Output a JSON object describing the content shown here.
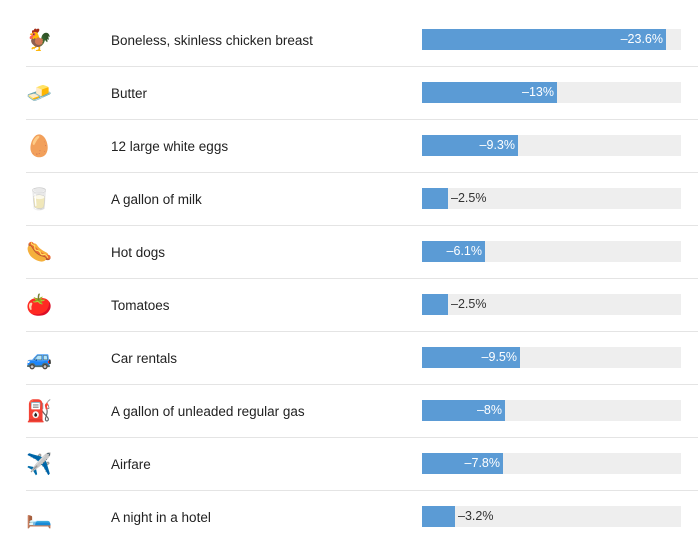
{
  "chart_data": {
    "type": "bar",
    "orientation": "horizontal",
    "title": "",
    "xlabel": "",
    "ylabel": "",
    "xlim": [
      0,
      25
    ],
    "grid": false,
    "bar_color": "#5b9bd5",
    "track_color": "#eeeeee",
    "categories": [
      "Boneless, skinless chicken breast",
      "Butter",
      "12 large white eggs",
      "A gallon of milk",
      "Hot dogs",
      "Tomatoes",
      "Car rentals",
      "A gallon of unleaded regular gas",
      "Airfare",
      "A night in a hotel"
    ],
    "values": [
      -23.6,
      -13,
      -9.3,
      -2.5,
      -6.1,
      -2.5,
      -9.5,
      -8,
      -7.8,
      -3.2
    ],
    "value_labels": [
      "–23.6%",
      "–13%",
      "–9.3%",
      "–2.5%",
      "–6.1%",
      "–2.5%",
      "–9.5%",
      "–8%",
      "–7.8%",
      "–3.2%"
    ],
    "icons": [
      {
        "name": "chicken-icon",
        "glyph": "🐓"
      },
      {
        "name": "butter-icon",
        "glyph": "🧈"
      },
      {
        "name": "egg-icon",
        "glyph": "🥚"
      },
      {
        "name": "milk-icon",
        "glyph": "🥛"
      },
      {
        "name": "hot-dog-icon",
        "glyph": "🌭"
      },
      {
        "name": "tomato-icon",
        "glyph": "🍅"
      },
      {
        "name": "car-icon",
        "glyph": "🚙"
      },
      {
        "name": "fuel-pump-icon",
        "glyph": "⛽"
      },
      {
        "name": "airplane-icon",
        "glyph": "✈️"
      },
      {
        "name": "bed-icon",
        "glyph": "🛏️"
      }
    ]
  }
}
